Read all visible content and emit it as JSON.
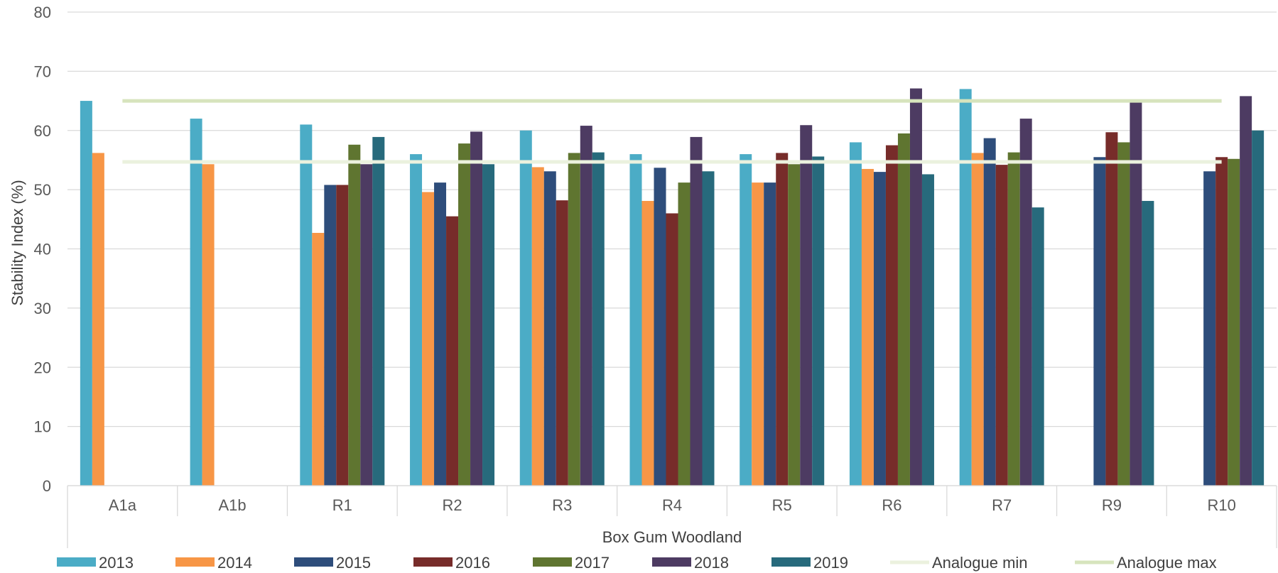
{
  "chart_data": {
    "type": "bar",
    "xlabel": "Box Gum Woodland",
    "ylabel": "Stability Index (%)",
    "ylim": [
      0,
      80
    ],
    "yticks": [
      0,
      10,
      20,
      30,
      40,
      50,
      60,
      70,
      80
    ],
    "grid": true,
    "legend_position": "bottom",
    "categories": [
      "A1a",
      "A1b",
      "R1",
      "R2",
      "R3",
      "R4",
      "R5",
      "R6",
      "R7",
      "R9",
      "R10"
    ],
    "series": [
      {
        "name": "2013",
        "color": "#4bacc6",
        "values": [
          65,
          62,
          61,
          56,
          60,
          56,
          56,
          58,
          67,
          null,
          null
        ]
      },
      {
        "name": "2014",
        "color": "#f79646",
        "values": [
          56.2,
          54.3,
          42.7,
          49.6,
          53.8,
          48.1,
          51.2,
          53.5,
          56.2,
          null,
          null
        ]
      },
      {
        "name": "2015",
        "color": "#2e4d7b",
        "values": [
          null,
          null,
          50.8,
          51.2,
          53.1,
          53.7,
          51.2,
          53,
          58.7,
          55.5,
          53.1
        ]
      },
      {
        "name": "2016",
        "color": "#772c2a",
        "values": [
          null,
          null,
          50.8,
          45.5,
          48.2,
          46,
          56.2,
          57.5,
          54.2,
          59.7,
          55.5
        ]
      },
      {
        "name": "2017",
        "color": "#5f7530",
        "values": [
          null,
          null,
          57.6,
          57.8,
          56.2,
          51.2,
          54.3,
          59.5,
          56.3,
          58,
          55.2
        ]
      },
      {
        "name": "2018",
        "color": "#4d3b62",
        "values": [
          null,
          null,
          54.3,
          59.8,
          60.8,
          58.9,
          60.9,
          67.1,
          62,
          64.8,
          65.8
        ]
      },
      {
        "name": "2019",
        "color": "#276a7c",
        "values": [
          null,
          null,
          58.9,
          54.3,
          56.3,
          53.1,
          55.6,
          52.6,
          47,
          48.1,
          60
        ]
      }
    ],
    "reference_lines": [
      {
        "name": "Analogue min",
        "color": "#ebf1de",
        "value": 54.7
      },
      {
        "name": "Analogue max",
        "color": "#d7e4bd",
        "value": 65
      }
    ]
  }
}
